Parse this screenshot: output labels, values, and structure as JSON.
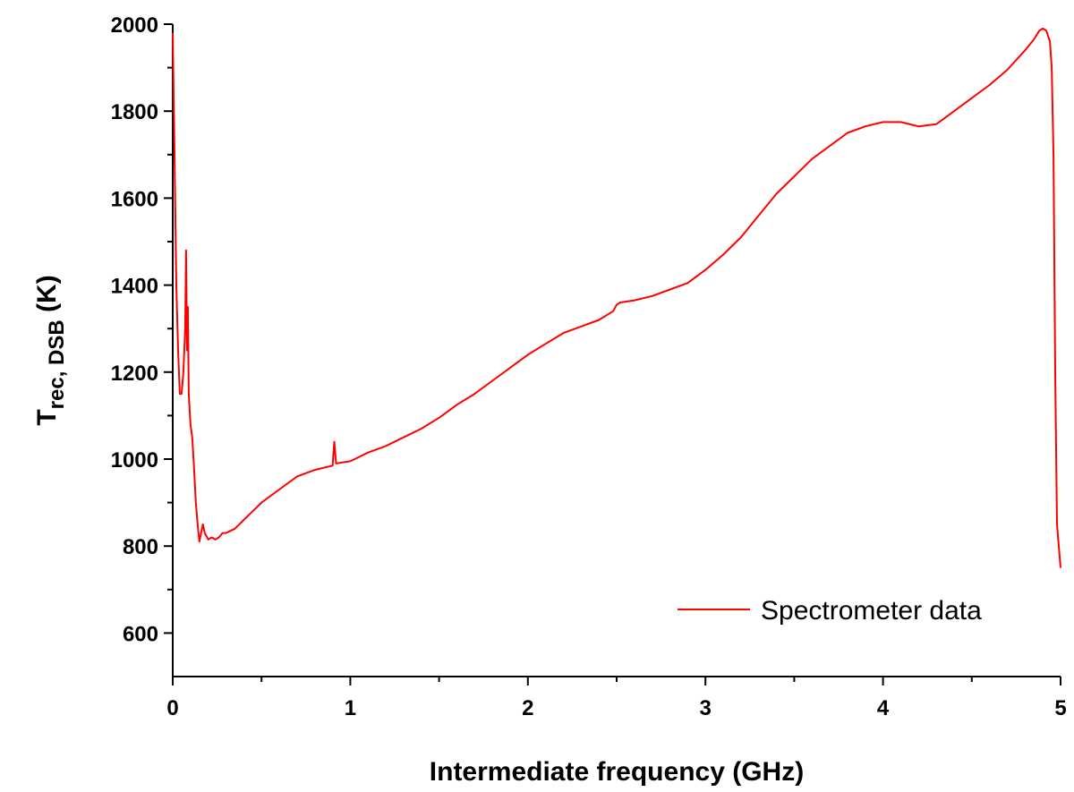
{
  "chart_data": {
    "type": "line",
    "xlabel": "Intermediate frequency (GHz)",
    "ylabel": {
      "main": "T",
      "subscript": "rec, DSB",
      "unit": " (K)"
    },
    "xlim": [
      0,
      5
    ],
    "ylim": [
      500,
      2000
    ],
    "x_ticks": [
      0,
      1,
      2,
      3,
      4,
      5
    ],
    "x_tick_labels": [
      "0",
      "1",
      "2",
      "3",
      "4",
      "5"
    ],
    "y_ticks": [
      600,
      800,
      1000,
      1200,
      1400,
      1600,
      1800,
      2000
    ],
    "y_tick_labels": [
      "600",
      "800",
      "1000",
      "1200",
      "1400",
      "1600",
      "1800",
      "2000"
    ],
    "grid": false,
    "legend_position": "bottom-right",
    "series": [
      {
        "name": "Spectrometer data",
        "color": "#ff0000",
        "x": [
          0.0,
          0.01,
          0.02,
          0.03,
          0.04,
          0.05,
          0.06,
          0.07,
          0.075,
          0.08,
          0.085,
          0.09,
          0.1,
          0.11,
          0.12,
          0.13,
          0.14,
          0.15,
          0.16,
          0.17,
          0.18,
          0.2,
          0.22,
          0.24,
          0.26,
          0.28,
          0.3,
          0.35,
          0.4,
          0.45,
          0.5,
          0.6,
          0.7,
          0.8,
          0.9,
          0.91,
          0.92,
          1.0,
          1.1,
          1.2,
          1.3,
          1.4,
          1.5,
          1.6,
          1.7,
          1.8,
          1.9,
          2.0,
          2.1,
          2.2,
          2.3,
          2.4,
          2.48,
          2.5,
          2.52,
          2.6,
          2.7,
          2.8,
          2.9,
          3.0,
          3.1,
          3.2,
          3.3,
          3.4,
          3.5,
          3.6,
          3.7,
          3.8,
          3.9,
          4.0,
          4.1,
          4.2,
          4.3,
          4.4,
          4.5,
          4.6,
          4.7,
          4.8,
          4.85,
          4.88,
          4.9,
          4.92,
          4.94,
          4.95,
          4.96,
          4.97,
          4.98,
          5.0
        ],
        "y": [
          1980,
          1700,
          1400,
          1250,
          1150,
          1150,
          1200,
          1300,
          1480,
          1250,
          1350,
          1150,
          1080,
          1050,
          980,
          900,
          850,
          810,
          830,
          850,
          830,
          815,
          820,
          815,
          820,
          830,
          830,
          840,
          860,
          880,
          900,
          930,
          960,
          975,
          985,
          1040,
          990,
          995,
          1015,
          1030,
          1050,
          1070,
          1095,
          1125,
          1150,
          1180,
          1210,
          1240,
          1265,
          1290,
          1305,
          1320,
          1340,
          1355,
          1360,
          1365,
          1375,
          1390,
          1405,
          1435,
          1470,
          1510,
          1560,
          1610,
          1650,
          1690,
          1720,
          1750,
          1765,
          1775,
          1775,
          1765,
          1770,
          1800,
          1830,
          1860,
          1895,
          1940,
          1965,
          1985,
          1990,
          1985,
          1960,
          1900,
          1700,
          1200,
          850,
          750
        ]
      }
    ]
  }
}
